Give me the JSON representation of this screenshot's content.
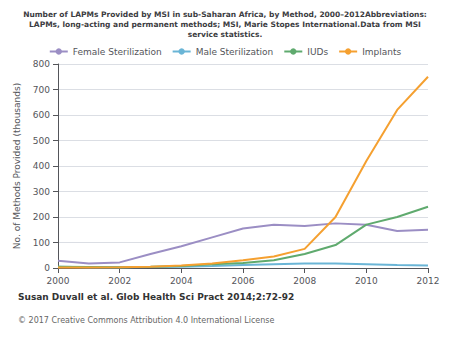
{
  "chart_data": {
    "type": "line",
    "title": "Number of LAPMs Provided by MSI in sub-Saharan Africa, by Method, 2000–2012Abbreviations:\nLAPMs, long-acting and permanent methods; MSI, Marie Stopes International.Data from MSI\nservice statistics.",
    "ylabel": "No. of Methods Provided (thousands)",
    "x": [
      2000,
      2001,
      2002,
      2003,
      2004,
      2005,
      2006,
      2007,
      2008,
      2009,
      2010,
      2011,
      2012
    ],
    "xlim": [
      2000,
      2012
    ],
    "xticks": [
      2000,
      2002,
      2004,
      2006,
      2008,
      2010,
      2012
    ],
    "ylim": [
      0,
      800
    ],
    "yticks": [
      0,
      100,
      200,
      300,
      400,
      500,
      600,
      700,
      800
    ],
    "grid": true,
    "legend": "top",
    "series": [
      {
        "name": "Female Sterilization",
        "color": "#9b8ec4",
        "values": [
          28,
          18,
          22,
          55,
          85,
          120,
          155,
          170,
          165,
          175,
          170,
          145,
          150
        ]
      },
      {
        "name": "Male Sterilization",
        "color": "#6ab5d6",
        "values": [
          5,
          3,
          3,
          4,
          5,
          8,
          12,
          15,
          18,
          18,
          15,
          12,
          10
        ]
      },
      {
        "name": "IUDs",
        "color": "#5faa6e",
        "values": [
          5,
          4,
          3,
          5,
          8,
          15,
          20,
          30,
          55,
          90,
          170,
          200,
          240
        ]
      },
      {
        "name": "Implants",
        "color": "#f5a030",
        "values": [
          2,
          2,
          3,
          5,
          10,
          18,
          30,
          45,
          75,
          200,
          420,
          620,
          750
        ]
      }
    ],
    "annotations": [
      "Susan Duvall et al. Glob Health Sci Pract 2014;2:72-92",
      "© 2017 Creative Commons Attribution 4.0 International License"
    ]
  }
}
